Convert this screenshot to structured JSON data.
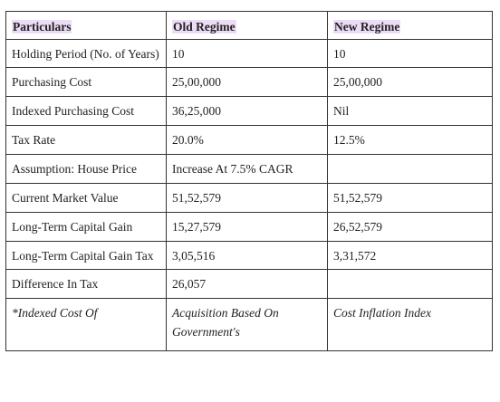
{
  "table": {
    "headers": [
      "Particulars",
      "Old Regime",
      "New Regime"
    ],
    "rows": [
      {
        "particular": "Holding Period (No. of Years)",
        "old": "10",
        "new": "10"
      },
      {
        "particular": "Purchasing Cost",
        "old": "25,00,000",
        "new": "25,00,000"
      },
      {
        "particular": "Indexed Purchasing Cost",
        "old": "36,25,000",
        "new": "Nil"
      },
      {
        "particular": "Tax Rate",
        "old": "20.0%",
        "new": "12.5%"
      },
      {
        "particular": "Assumption: House Price",
        "old": "Increase At 7.5% CAGR",
        "new": ""
      },
      {
        "particular": "Current Market Value",
        "old": "51,52,579",
        "new": "51,52,579"
      },
      {
        "particular": "Long-Term Capital Gain",
        "old": "15,27,579",
        "new": "26,52,579"
      },
      {
        "particular": "Long-Term Capital Gain Tax",
        "old": "3,05,516",
        "new": "3,31,572"
      },
      {
        "particular": "Difference In Tax",
        "old": "26,057",
        "new": ""
      },
      {
        "particular": "*Indexed Cost Of",
        "old": "Acquisition Based On Government's",
        "new": "Cost Inflation Index"
      }
    ]
  }
}
